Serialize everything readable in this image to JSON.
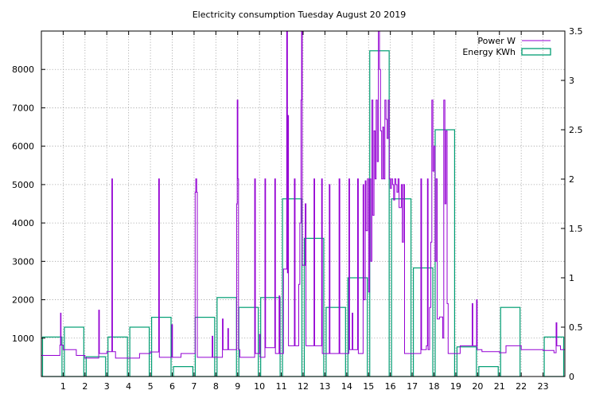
{
  "chart_data": {
    "type": "line",
    "title": "Electricity consumption Tuesday August 20 2019",
    "xlabel": "",
    "ylabel": "",
    "y2label": "",
    "x_range": [
      0,
      24
    ],
    "x_ticks": [
      1,
      2,
      3,
      4,
      5,
      6,
      7,
      8,
      9,
      10,
      11,
      12,
      13,
      14,
      15,
      16,
      17,
      18,
      19,
      20,
      21,
      22,
      23
    ],
    "y_left_range": [
      0,
      9000
    ],
    "y_left_ticks": [
      1000,
      2000,
      3000,
      4000,
      5000,
      6000,
      7000,
      8000
    ],
    "y_right_range": [
      0,
      3.5
    ],
    "y_right_ticks": [
      0,
      0.5,
      1,
      1.5,
      2,
      2.5,
      3,
      3.5
    ],
    "grid": true,
    "legend_position": "top-right",
    "series": [
      {
        "name": "Power W",
        "axis": "left",
        "style": "line",
        "color": "#9400d3",
        "points": [
          [
            0.0,
            550
          ],
          [
            0.7,
            550
          ],
          [
            0.85,
            820
          ],
          [
            0.88,
            1650
          ],
          [
            0.9,
            820
          ],
          [
            1.0,
            700
          ],
          [
            1.55,
            700
          ],
          [
            1.6,
            550
          ],
          [
            2.0,
            480
          ],
          [
            2.6,
            480
          ],
          [
            2.63,
            1730
          ],
          [
            2.66,
            600
          ],
          [
            3.0,
            650
          ],
          [
            3.2,
            650
          ],
          [
            3.23,
            5150
          ],
          [
            3.26,
            650
          ],
          [
            3.4,
            480
          ],
          [
            4.0,
            480
          ],
          [
            4.3,
            480
          ],
          [
            4.5,
            600
          ],
          [
            5.0,
            640
          ],
          [
            5.35,
            640
          ],
          [
            5.38,
            5150
          ],
          [
            5.41,
            500
          ],
          [
            5.5,
            500
          ],
          [
            5.95,
            500
          ],
          [
            5.98,
            1350
          ],
          [
            6.01,
            500
          ],
          [
            6.4,
            600
          ],
          [
            7.0,
            600
          ],
          [
            7.05,
            4800
          ],
          [
            7.08,
            5150
          ],
          [
            7.12,
            4800
          ],
          [
            7.15,
            500
          ],
          [
            7.8,
            500
          ],
          [
            7.83,
            1050
          ],
          [
            7.86,
            500
          ],
          [
            8.3,
            1500
          ],
          [
            8.33,
            700
          ],
          [
            8.55,
            1250
          ],
          [
            8.58,
            700
          ],
          [
            8.95,
            4500
          ],
          [
            8.98,
            7200
          ],
          [
            9.01,
            5150
          ],
          [
            9.04,
            700
          ],
          [
            9.1,
            500
          ],
          [
            9.75,
            500
          ],
          [
            9.78,
            5150
          ],
          [
            9.81,
            600
          ],
          [
            10.0,
            1100
          ],
          [
            10.03,
            500
          ],
          [
            10.25,
            5150
          ],
          [
            10.28,
            750
          ],
          [
            10.7,
            5150
          ],
          [
            10.73,
            600
          ],
          [
            10.9,
            2100
          ],
          [
            10.93,
            600
          ],
          [
            11.1,
            2800
          ],
          [
            11.25,
            9000
          ],
          [
            11.28,
            2700
          ],
          [
            11.3,
            6800
          ],
          [
            11.33,
            800
          ],
          [
            11.6,
            5150
          ],
          [
            11.63,
            800
          ],
          [
            11.8,
            2400
          ],
          [
            11.85,
            4000
          ],
          [
            11.9,
            7200
          ],
          [
            11.93,
            9000
          ],
          [
            11.96,
            2900
          ],
          [
            12.1,
            4500
          ],
          [
            12.13,
            800
          ],
          [
            12.5,
            5150
          ],
          [
            12.53,
            800
          ],
          [
            12.85,
            5150
          ],
          [
            12.88,
            600
          ],
          [
            13.2,
            5000
          ],
          [
            13.23,
            600
          ],
          [
            13.65,
            5150
          ],
          [
            13.68,
            600
          ],
          [
            14.1,
            5150
          ],
          [
            14.13,
            700
          ],
          [
            14.25,
            1650
          ],
          [
            14.28,
            700
          ],
          [
            14.5,
            5150
          ],
          [
            14.53,
            600
          ],
          [
            14.75,
            5000
          ],
          [
            14.78,
            2000
          ],
          [
            14.85,
            5100
          ],
          [
            14.88,
            3800
          ],
          [
            14.95,
            5150
          ],
          [
            14.98,
            5150
          ],
          [
            15.0,
            2200
          ],
          [
            15.05,
            5150
          ],
          [
            15.1,
            3000
          ],
          [
            15.15,
            7200
          ],
          [
            15.2,
            4200
          ],
          [
            15.25,
            6400
          ],
          [
            15.3,
            5150
          ],
          [
            15.35,
            7200
          ],
          [
            15.4,
            5600
          ],
          [
            15.45,
            9000
          ],
          [
            15.5,
            8000
          ],
          [
            15.55,
            6400
          ],
          [
            15.6,
            5150
          ],
          [
            15.65,
            6500
          ],
          [
            15.7,
            5150
          ],
          [
            15.75,
            7200
          ],
          [
            15.8,
            6700
          ],
          [
            15.85,
            6200
          ],
          [
            15.9,
            7200
          ],
          [
            15.95,
            5150
          ],
          [
            16.0,
            4900
          ],
          [
            16.05,
            5150
          ],
          [
            16.1,
            5000
          ],
          [
            16.15,
            4600
          ],
          [
            16.2,
            5150
          ],
          [
            16.25,
            5000
          ],
          [
            16.3,
            4800
          ],
          [
            16.35,
            5150
          ],
          [
            16.4,
            4400
          ],
          [
            16.5,
            5000
          ],
          [
            16.55,
            3500
          ],
          [
            16.6,
            5000
          ],
          [
            16.65,
            600
          ],
          [
            17.0,
            600
          ],
          [
            17.35,
            600
          ],
          [
            17.4,
            5150
          ],
          [
            17.43,
            700
          ],
          [
            17.65,
            800
          ],
          [
            17.7,
            5150
          ],
          [
            17.73,
            700
          ],
          [
            17.8,
            1800
          ],
          [
            17.85,
            3500
          ],
          [
            17.9,
            7200
          ],
          [
            17.95,
            5350
          ],
          [
            18.0,
            6000
          ],
          [
            18.05,
            3000
          ],
          [
            18.1,
            5150
          ],
          [
            18.15,
            1500
          ],
          [
            18.25,
            1550
          ],
          [
            18.35,
            1550
          ],
          [
            18.4,
            1000
          ],
          [
            18.45,
            7200
          ],
          [
            18.5,
            4500
          ],
          [
            18.55,
            6400
          ],
          [
            18.6,
            1900
          ],
          [
            18.65,
            600
          ],
          [
            18.8,
            600
          ],
          [
            19.0,
            600
          ],
          [
            19.2,
            800
          ],
          [
            19.7,
            800
          ],
          [
            19.75,
            1900
          ],
          [
            19.78,
            800
          ],
          [
            19.95,
            2000
          ],
          [
            19.98,
            700
          ],
          [
            20.2,
            650
          ],
          [
            20.5,
            650
          ],
          [
            21.0,
            620
          ],
          [
            21.3,
            800
          ],
          [
            21.6,
            800
          ],
          [
            22.0,
            700
          ],
          [
            22.5,
            700
          ],
          [
            23.0,
            680
          ],
          [
            23.5,
            620
          ],
          [
            23.6,
            1400
          ],
          [
            23.63,
            800
          ],
          [
            23.8,
            700
          ],
          [
            24.0,
            600
          ]
        ]
      },
      {
        "name": "Energy KWh",
        "axis": "right",
        "style": "steps",
        "color": "#009e73",
        "x": [
          0,
          1,
          2,
          3,
          4,
          5,
          6,
          7,
          8,
          9,
          10,
          11,
          12,
          13,
          14,
          15,
          16,
          17,
          18,
          19,
          20,
          21,
          22,
          23
        ],
        "values": [
          0.4,
          0.5,
          0.2,
          0.4,
          0.5,
          0.6,
          0.1,
          0.6,
          0.8,
          0.7,
          0.8,
          1.8,
          1.4,
          0.7,
          1.0,
          3.3,
          1.8,
          1.1,
          2.5,
          0.3,
          0.1,
          0.7,
          0.0,
          0.4
        ]
      }
    ]
  }
}
